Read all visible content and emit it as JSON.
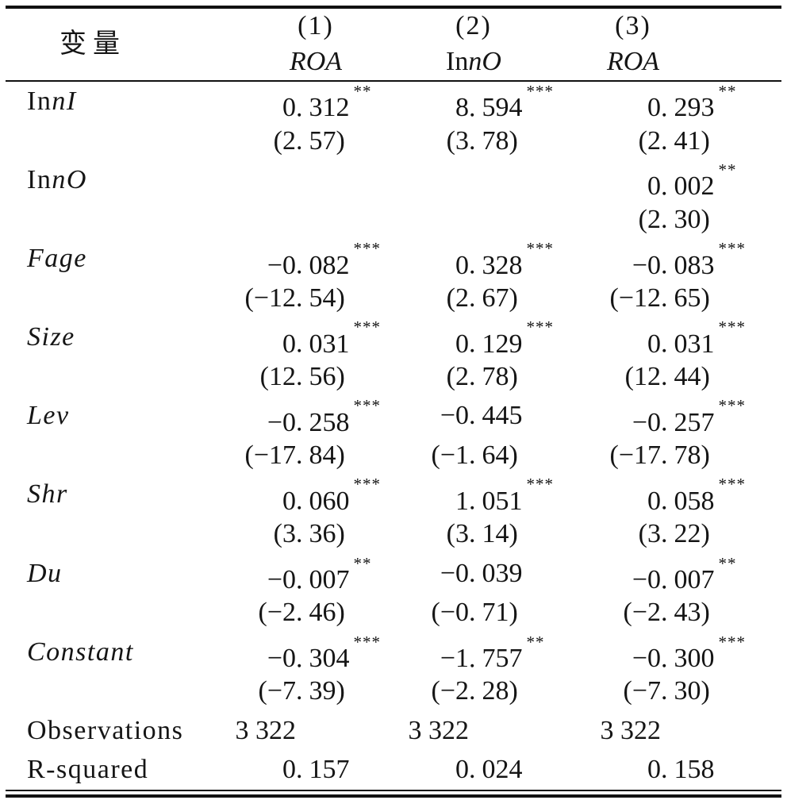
{
  "colors": {
    "text": "#151515",
    "rule": "#111111",
    "background": "#ffffff"
  },
  "table": {
    "header": {
      "variable_label": "变量",
      "columns": [
        {
          "num": "(1)",
          "depvar_roman": "",
          "depvar_italic": "ROA"
        },
        {
          "num": "(2)",
          "depvar_roman": "In",
          "depvar_italic": "nO"
        },
        {
          "num": "(3)",
          "depvar_roman": "",
          "depvar_italic": "ROA"
        }
      ]
    },
    "rows": [
      {
        "label_roman": "In",
        "label_italic": "nI",
        "cells": [
          {
            "value": "0.312",
            "stars": "**"
          },
          {
            "value": "8.594",
            "stars": "***"
          },
          {
            "value": "0.293",
            "stars": "**"
          }
        ]
      },
      {
        "label_roman": "",
        "label_italic": "",
        "cells": [
          {
            "value": "(2.57)"
          },
          {
            "value": "(3.78)"
          },
          {
            "value": "(2.41)"
          }
        ]
      },
      {
        "label_roman": "In",
        "label_italic": "nO",
        "cells": [
          {
            "value": ""
          },
          {
            "value": ""
          },
          {
            "value": "0.002",
            "stars": "**"
          }
        ]
      },
      {
        "label_roman": "",
        "label_italic": "",
        "cells": [
          {
            "value": ""
          },
          {
            "value": ""
          },
          {
            "value": "(2.30)"
          }
        ]
      },
      {
        "label_roman": "",
        "label_italic": "Fage",
        "cells": [
          {
            "value": "−0.082",
            "stars": "***"
          },
          {
            "value": "0.328",
            "stars": "***"
          },
          {
            "value": "−0.083",
            "stars": "***"
          }
        ]
      },
      {
        "label_roman": "",
        "label_italic": "",
        "cells": [
          {
            "value": "(−12.54)"
          },
          {
            "value": "(2.67)"
          },
          {
            "value": "(−12.65)"
          }
        ]
      },
      {
        "label_roman": "",
        "label_italic": "Size",
        "cells": [
          {
            "value": "0.031",
            "stars": "***"
          },
          {
            "value": "0.129",
            "stars": "***"
          },
          {
            "value": "0.031",
            "stars": "***"
          }
        ]
      },
      {
        "label_roman": "",
        "label_italic": "",
        "cells": [
          {
            "value": "(12.56)"
          },
          {
            "value": "(2.78)"
          },
          {
            "value": "(12.44)"
          }
        ]
      },
      {
        "label_roman": "",
        "label_italic": "Lev",
        "cells": [
          {
            "value": "−0.258",
            "stars": "***"
          },
          {
            "value": "−0.445"
          },
          {
            "value": "−0.257",
            "stars": "***"
          }
        ]
      },
      {
        "label_roman": "",
        "label_italic": "",
        "cells": [
          {
            "value": "(−17.84)"
          },
          {
            "value": "(−1.64)"
          },
          {
            "value": "(−17.78)"
          }
        ]
      },
      {
        "label_roman": "",
        "label_italic": "Shr",
        "cells": [
          {
            "value": "0.060",
            "stars": "***"
          },
          {
            "value": "1.051",
            "stars": "***"
          },
          {
            "value": "0.058",
            "stars": "***"
          }
        ]
      },
      {
        "label_roman": "",
        "label_italic": "",
        "cells": [
          {
            "value": "(3.36)"
          },
          {
            "value": "(3.14)"
          },
          {
            "value": "(3.22)"
          }
        ]
      },
      {
        "label_roman": "",
        "label_italic": "Du",
        "cells": [
          {
            "value": "−0.007",
            "stars": "**"
          },
          {
            "value": "−0.039"
          },
          {
            "value": "−0.007",
            "stars": "**"
          }
        ]
      },
      {
        "label_roman": "",
        "label_italic": "",
        "cells": [
          {
            "value": "(−2.46)"
          },
          {
            "value": "(−0.71)"
          },
          {
            "value": "(−2.43)"
          }
        ]
      },
      {
        "label_roman": "",
        "label_italic": "Constant",
        "cells": [
          {
            "value": "−0.304",
            "stars": "***"
          },
          {
            "value": "−1.757",
            "stars": "**"
          },
          {
            "value": "−0.300",
            "stars": "***"
          }
        ]
      },
      {
        "label_roman": "",
        "label_italic": "",
        "cells": [
          {
            "value": "(−7.39)"
          },
          {
            "value": "(−2.28)"
          },
          {
            "value": "(−7.30)"
          }
        ]
      },
      {
        "label_roman": "Observations",
        "label_italic": "",
        "cells": [
          {
            "value": "3 322"
          },
          {
            "value": "3 322"
          },
          {
            "value": "3 322"
          }
        ]
      },
      {
        "label_roman": "R-squared",
        "label_italic": "",
        "cells": [
          {
            "value": "0.157"
          },
          {
            "value": "0.024"
          },
          {
            "value": "0.158"
          }
        ]
      }
    ]
  }
}
